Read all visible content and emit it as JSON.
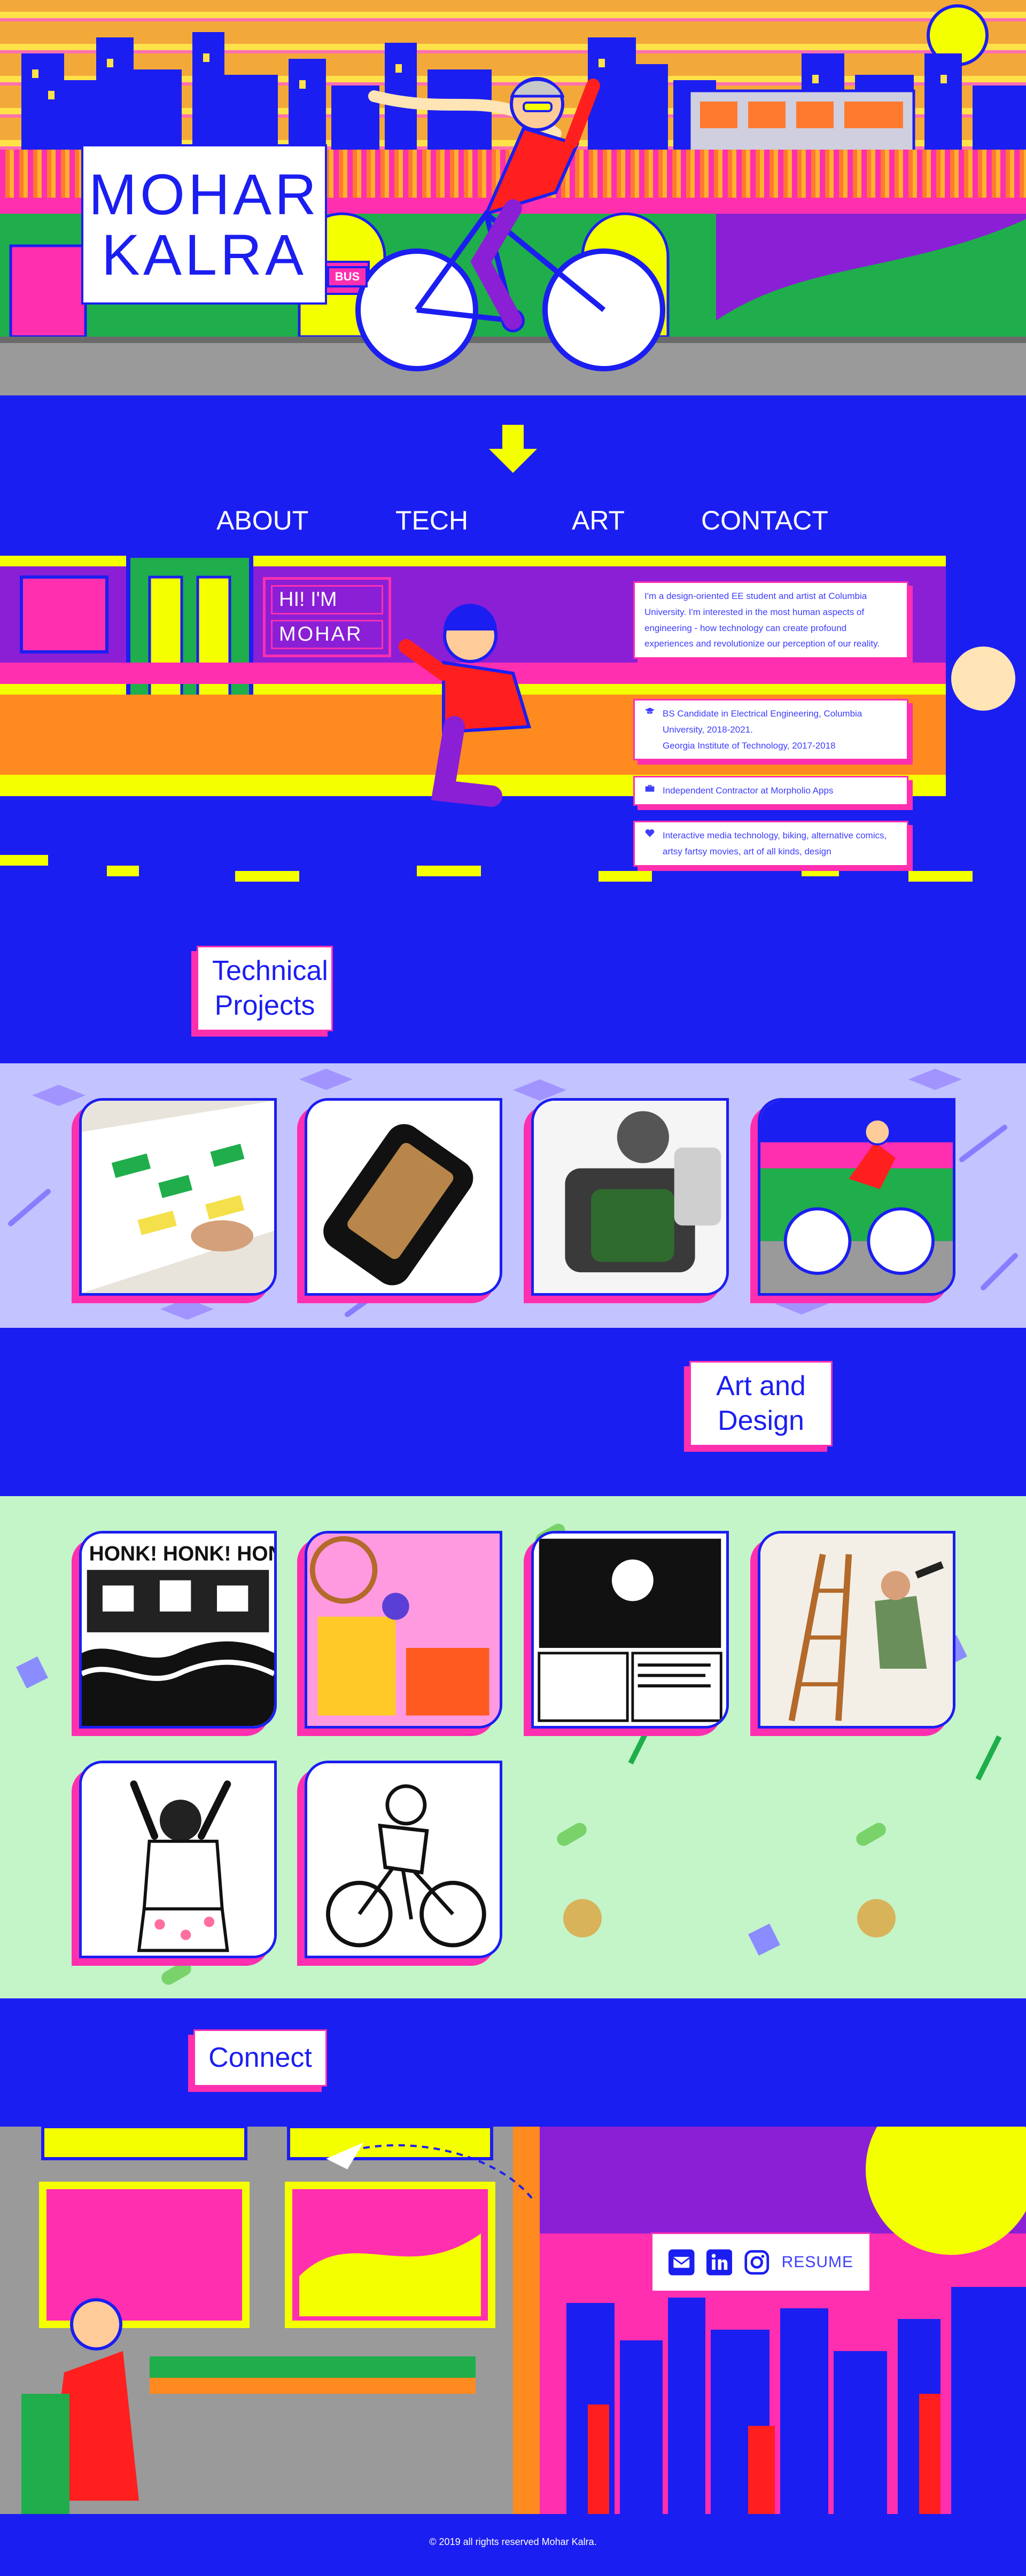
{
  "hero": {
    "title_line1": "MOHAR",
    "title_line2": "KALRA",
    "bus_sign": "BUS"
  },
  "nav": {
    "arrow_icon": "down-arrow-icon",
    "items": [
      {
        "label": "ABOUT"
      },
      {
        "label": "TECH"
      },
      {
        "label": "ART"
      },
      {
        "label": "CONTACT"
      }
    ]
  },
  "about": {
    "sign_line1": "HI! I'M",
    "sign_line2": "MOHAR",
    "intro": "I'm a design-oriented EE student and artist at Columbia University. I'm interested in the most human aspects of engineering - how technology can create profound experiences and revolutionize our perception of our reality.",
    "education_line1": "BS Candidate in Electrical Engineering, Columbia University, 2018-2021.",
    "education_line2": "Georgia Institute of Technology, 2017-2018",
    "work": "Independent Contractor at Morpholio Apps",
    "interests": "Interactive media technology, biking, alternative comics, artsy fartsy movies, art of all kinds, design",
    "icons": {
      "education": "graduation-cap-icon",
      "work": "briefcase-icon",
      "interests": "heart-icon"
    }
  },
  "tech_heading": {
    "line1": "Technical",
    "line2": "Projects"
  },
  "tech_projects": [
    {
      "name": "tech-project-interactive-table"
    },
    {
      "name": "tech-project-circuit-device"
    },
    {
      "name": "tech-project-engine-cad"
    },
    {
      "name": "tech-project-bike-illustration"
    }
  ],
  "art_heading": {
    "line1": "Art and",
    "line2": "Design"
  },
  "art_works": [
    {
      "name": "art-honk-comic",
      "caption_text": "HONK! HONK! HON"
    },
    {
      "name": "art-pink-market"
    },
    {
      "name": "art-comic-page"
    },
    {
      "name": "art-ladder-painter"
    },
    {
      "name": "art-dancer"
    },
    {
      "name": "art-cyclist-sketch"
    }
  ],
  "connect": {
    "heading": "Connect",
    "resume_label": "RESUME",
    "icons": [
      "email-icon",
      "linkedin-icon",
      "instagram-icon"
    ]
  },
  "footer": {
    "text": "© 2019 all rights reserved Mohar Kalra."
  },
  "colors": {
    "brand_blue": "#1b1ef0",
    "accent_pink": "#ff2fb0",
    "sun_yellow": "#f4ff00",
    "tech_bg": "#c3c4ff",
    "art_bg": "#c3f5c8"
  }
}
